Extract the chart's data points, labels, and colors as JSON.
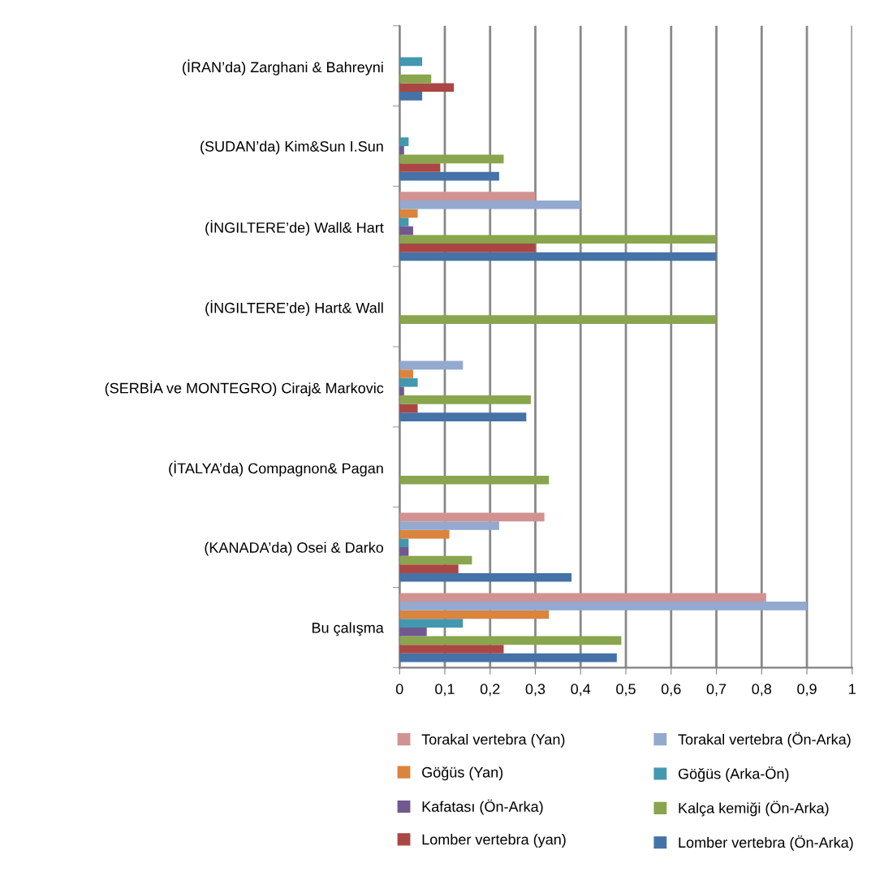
{
  "chart_data": {
    "type": "bar",
    "orientation": "horizontal",
    "categories": [
      "(İRAN’da) Zarghani & Bahreyni",
      "(SUDAN’da) Kim&Sun I.Sun",
      "(İNGILTERE’de) Wall& Hart",
      "(İNGILTERE’de) Hart& Wall",
      "(SERBİA ve MONTEGRO) Ciraj& Markovic",
      "(İTALYA’da) Compagnon& Pagan",
      "(KANADA’da) Osei & Darko",
      "Bu çalışma"
    ],
    "series": [
      {
        "name": "Lomber vertebra (Ön-Arka)",
        "color": "#4572a7",
        "values": [
          0.05,
          0.22,
          0.7,
          null,
          0.28,
          null,
          0.38,
          0.48
        ]
      },
      {
        "name": "Lomber vertebra (yan)",
        "color": "#aa4643",
        "values": [
          0.12,
          0.09,
          0.3,
          null,
          0.04,
          null,
          0.13,
          0.23
        ]
      },
      {
        "name": "Kalça kemiği (Ön-Arka)",
        "color": "#89a54e",
        "values": [
          0.07,
          0.23,
          0.7,
          0.7,
          0.29,
          0.33,
          0.16,
          0.49
        ]
      },
      {
        "name": "Kafatası (Ön-Arka)",
        "color": "#71588f",
        "values": [
          null,
          0.01,
          0.03,
          null,
          0.01,
          null,
          0.02,
          0.06
        ]
      },
      {
        "name": "Göğüs (Arka-Ön)",
        "color": "#4198af",
        "values": [
          0.05,
          0.02,
          0.02,
          null,
          0.04,
          null,
          0.02,
          0.14
        ]
      },
      {
        "name": "Göğüs (Yan)",
        "color": "#db843d",
        "values": [
          null,
          null,
          0.04,
          null,
          0.03,
          null,
          0.11,
          0.33
        ]
      },
      {
        "name": "Torakal vertebra (Ön-Arka)",
        "color": "#93a9cf",
        "values": [
          null,
          null,
          0.4,
          null,
          0.14,
          null,
          0.22,
          0.9
        ]
      },
      {
        "name": "Torakal vertebra (Yan)",
        "color": "#d19392",
        "values": [
          null,
          null,
          0.3,
          null,
          null,
          null,
          0.32,
          0.81
        ]
      }
    ],
    "xlim": [
      0,
      1
    ],
    "xticks": [
      0,
      {
        "value": 0.1,
        "label": "0,1"
      },
      {
        "value": 0.2,
        "label": "0,2"
      },
      {
        "value": 0.3,
        "label": "0,3"
      },
      {
        "value": 0.4,
        "label": "0,4"
      },
      {
        "value": 0.5,
        "label": "0,5"
      },
      {
        "value": 0.6,
        "label": "0,6"
      },
      {
        "value": 0.7,
        "label": "0,7"
      },
      {
        "value": 0.8,
        "label": "0,8"
      },
      {
        "value": 0.9,
        "label": "0,9"
      },
      1
    ],
    "grid": "x",
    "legend": "bottom"
  }
}
